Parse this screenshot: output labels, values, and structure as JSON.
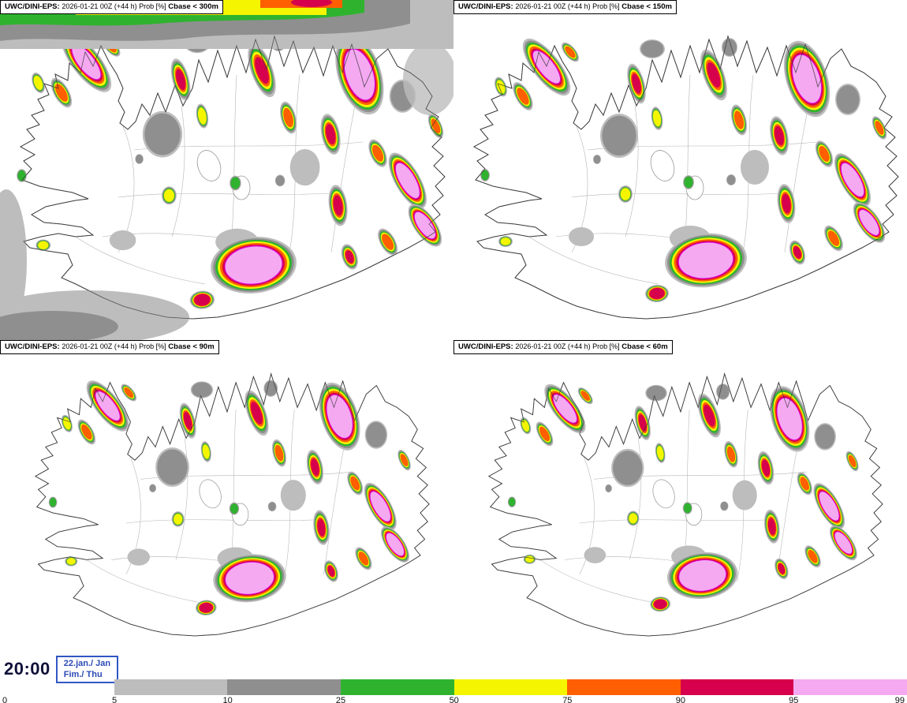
{
  "panels": [
    {
      "model": "UWC/DINI-EPS:",
      "info": "2026-01-21 00Z (+44 h) Prob [%]",
      "threshold": "Cbase < 300m"
    },
    {
      "model": "UWC/DINI-EPS:",
      "info": "2026-01-21 00Z (+44 h) Prob [%]",
      "threshold": "Cbase < 150m"
    },
    {
      "model": "UWC/DINI-EPS:",
      "info": "2026-01-21 00Z (+44 h) Prob [%]",
      "threshold": "Cbase < 90m"
    },
    {
      "model": "UWC/DINI-EPS:",
      "info": "2026-01-21 00Z (+44 h) Prob [%]",
      "threshold": "Cbase < 60m"
    }
  ],
  "footer": {
    "time": "20:00",
    "date_top": "22.jan./ Jan",
    "date_bottom": "Fim./ Thu"
  },
  "colorbar": {
    "ticks": [
      "0",
      "5",
      "10",
      "25",
      "50",
      "75",
      "90",
      "95",
      "99"
    ],
    "segments": [
      {
        "range": "5-10",
        "color": "#bdbdbd"
      },
      {
        "range": "10-25",
        "color": "#8f8f8f"
      },
      {
        "range": "25-50",
        "color": "#2fb32f"
      },
      {
        "range": "50-75",
        "color": "#f5f500"
      },
      {
        "range": "75-90",
        "color": "#ff5f00"
      },
      {
        "range": "90-95",
        "color": "#d6004c"
      },
      {
        "range": "95-99",
        "color": "#f4a9f1"
      }
    ]
  },
  "colors": {
    "magenta_contour": "#e000e0",
    "coastline": "#333333",
    "date_blue": "#2b49b5",
    "time_navy": "#10103a"
  }
}
